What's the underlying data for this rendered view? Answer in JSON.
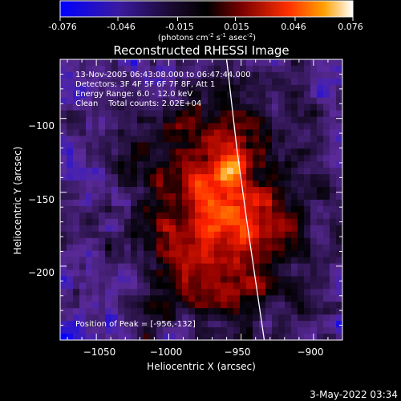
{
  "colorbar": {
    "tick_labels": [
      "-0.076",
      "-0.046",
      "-0.015",
      "0.015",
      "0.046",
      "0.076"
    ],
    "units": "(photons cm",
    "units_exp1": "-2",
    "units_mid": " s",
    "units_exp2": "-1",
    "units_end": " asec",
    "units_exp3": "-2",
    "units_close": ")"
  },
  "chart_data": {
    "type": "heatmap",
    "title": "Reconstructed RHESSI Image",
    "xlabel": "Heliocentric X (arcsec)",
    "ylabel": "Heliocentric Y (arcsec)",
    "xlim": [
      -1075,
      -880
    ],
    "ylim": [
      -250,
      -60
    ],
    "x_ticks": [
      -1050,
      -1000,
      -950,
      -900
    ],
    "y_ticks": [
      -100,
      -150,
      -200
    ],
    "x_tick_labels": [
      "−1050",
      "−1000",
      "−950",
      "−900"
    ],
    "y_tick_labels": [
      "−100",
      "−150",
      "−200"
    ],
    "colorbar_range": [
      -0.076,
      0.076
    ],
    "colormap": [
      "#0000ff",
      "#5a2a9a",
      "#000000",
      "#8a0000",
      "#ff2000",
      "#ff9a00",
      "#ffffff"
    ],
    "annotations": [
      "13-Nov-2005 06:43:08.000 to 06:47:44.000",
      "Detectors: 3F 4F 5F 6F 7F 8F, Att 1",
      "Energy Range: 6.0 - 12.0 keV",
      "Clean    Total counts: 2.02E+04"
    ],
    "peak_label": "Position of Peak = [-956,-132]",
    "peak": [
      -956,
      -132
    ],
    "limb_line": [
      [
        -960,
        -60
      ],
      [
        -953,
        -120
      ],
      [
        -946,
        -170
      ],
      [
        -940,
        -210
      ],
      [
        -934,
        -250
      ]
    ]
  },
  "footer": {
    "date": "3-May-2022 03:34"
  }
}
